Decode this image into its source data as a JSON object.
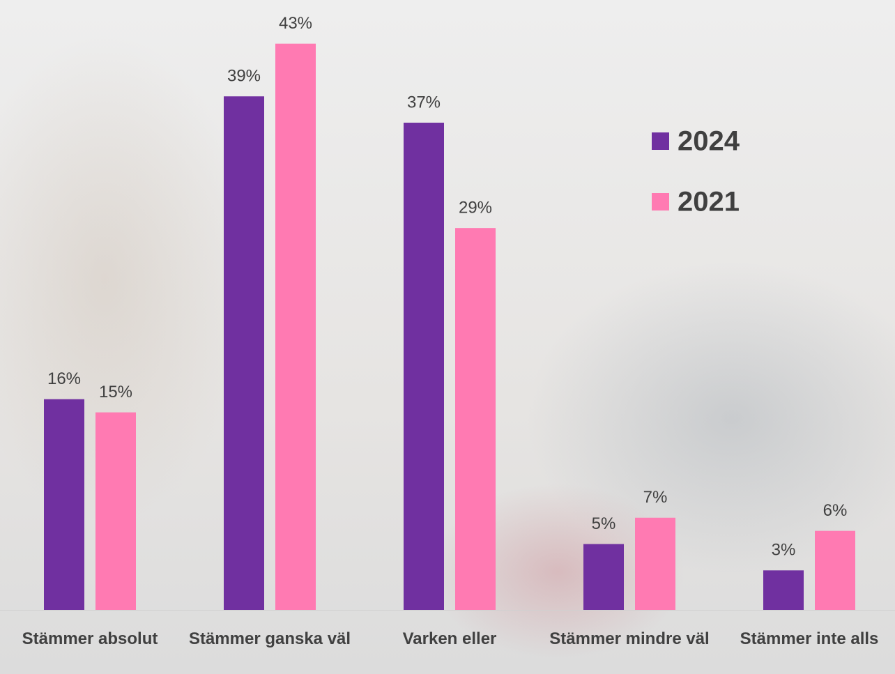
{
  "chart_data": {
    "type": "bar",
    "categories": [
      "Stämmer absolut",
      "Stämmer ganska väl",
      "Varken eller",
      "Stämmer mindre väl",
      "Stämmer inte alls"
    ],
    "series": [
      {
        "name": "2024",
        "color": "#7030a0",
        "values": [
          16,
          39,
          37,
          5,
          3
        ],
        "value_labels": [
          "16%",
          "39%",
          "37%",
          "5%",
          "3%"
        ]
      },
      {
        "name": "2021",
        "color": "#ff7ab2",
        "values": [
          15,
          43,
          29,
          7,
          6
        ],
        "value_labels": [
          "15%",
          "43%",
          "29%",
          "7%",
          "6%"
        ]
      }
    ],
    "ylim": [
      0,
      46
    ]
  }
}
